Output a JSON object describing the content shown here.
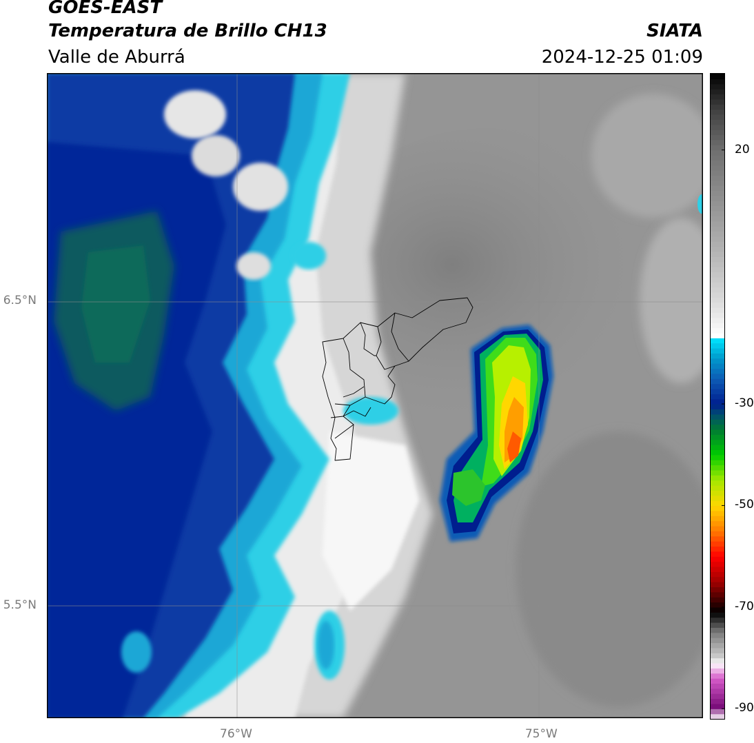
{
  "header": {
    "satellite": "GOES-EAST",
    "product": "Temperatura de Brillo CH13",
    "region": "Valle de Aburrá",
    "organization": "SIATA",
    "timestamp": "2024-12-25 01:09"
  },
  "map": {
    "lat_ticks": [
      {
        "value": 6.5,
        "label": "6.5°N"
      },
      {
        "value": 5.5,
        "label": "5.5°N"
      }
    ],
    "lon_ticks": [
      {
        "value": -76.0,
        "label": "76°W"
      },
      {
        "value": -75.0,
        "label": "75°W"
      }
    ],
    "lon_range": [
      -76.62,
      -74.47
    ],
    "lat_range": [
      5.13,
      7.25
    ],
    "gridlines": true
  },
  "colorbar": {
    "label": "",
    "range": [
      -92,
      35
    ],
    "ticks": [
      {
        "value": 20,
        "label": "20"
      },
      {
        "value": -30,
        "label": "-30"
      },
      {
        "value": -50,
        "label": "-50"
      },
      {
        "value": -70,
        "label": "-70"
      },
      {
        "value": -90,
        "label": "-90"
      }
    ],
    "stops": [
      {
        "value": -92,
        "color": "#ffffff"
      },
      {
        "value": -89.5,
        "color": "#7b0f7b"
      },
      {
        "value": -84,
        "color": "#d65bc9"
      },
      {
        "value": -81,
        "color": "#ffffff"
      },
      {
        "value": -80,
        "color": "#cfcfcf"
      },
      {
        "value": -75,
        "color": "#7c7c7c"
      },
      {
        "value": -71,
        "color": "#000000"
      },
      {
        "value": -65,
        "color": "#a00000"
      },
      {
        "value": -60,
        "color": "#ff0000"
      },
      {
        "value": -55,
        "color": "#ff7a00"
      },
      {
        "value": -50,
        "color": "#ffd700"
      },
      {
        "value": -45,
        "color": "#a5e800"
      },
      {
        "value": -40,
        "color": "#00cc00"
      },
      {
        "value": -35,
        "color": "#007a33"
      },
      {
        "value": -32,
        "color": "#004d70"
      },
      {
        "value": -30,
        "color": "#001e8e"
      },
      {
        "value": -25,
        "color": "#0d5cb5"
      },
      {
        "value": -21,
        "color": "#0099cc"
      },
      {
        "value": -17,
        "color": "#00e5ff"
      },
      {
        "value": -16.5,
        "color": "#ffffff"
      },
      {
        "value": -10,
        "color": "#dcdcdc"
      },
      {
        "value": 0,
        "color": "#b4b4b4"
      },
      {
        "value": 10,
        "color": "#919191"
      },
      {
        "value": 20,
        "color": "#6f6f6f"
      },
      {
        "value": 28,
        "color": "#404040"
      },
      {
        "value": 35,
        "color": "#000000"
      }
    ]
  }
}
